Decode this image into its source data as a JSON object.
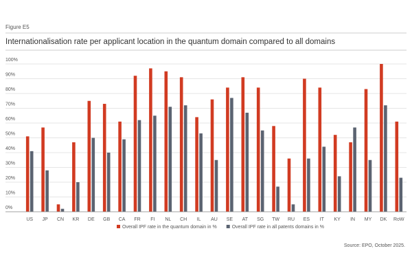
{
  "chart_data": {
    "type": "bar",
    "figure_label": "Figure E5",
    "title": "Internationalisation rate per applicant location in the quantum domain compared to all domains",
    "source": "Source: EPO, October 2025.",
    "categories": [
      "US",
      "JP",
      "CN",
      "KR",
      "DE",
      "GB",
      "CA",
      "FR",
      "FI",
      "NL",
      "CH",
      "IL",
      "AU",
      "SE",
      "AT",
      "SG",
      "TW",
      "RU",
      "ES",
      "IT",
      "KY",
      "IN",
      "MY",
      "DK",
      "RoW"
    ],
    "series": [
      {
        "name": "Overall IPF rate in the quantum domain in %",
        "color": "#d13b22",
        "values": [
          51,
          57,
          5,
          47,
          75,
          73,
          61,
          92,
          97,
          95,
          91,
          64,
          76,
          84,
          91,
          84,
          58,
          36,
          90,
          84,
          52,
          47,
          83,
          100,
          61
        ]
      },
      {
        "name": "Overall IPF rate in all patents domains in %",
        "color": "#5b6371",
        "values": [
          41,
          28,
          2,
          20,
          50,
          40,
          49,
          62,
          65,
          71,
          72,
          53,
          35,
          77,
          67,
          55,
          17,
          5,
          36,
          44,
          24,
          57,
          35,
          72,
          23
        ]
      }
    ],
    "ylim": [
      0,
      100
    ],
    "yticks": [
      {
        "value": 0,
        "label": "0%"
      },
      {
        "value": 10,
        "label": "10%"
      },
      {
        "value": 20,
        "label": "20%"
      },
      {
        "value": 30,
        "label": "30%"
      },
      {
        "value": 40,
        "label": "40%"
      },
      {
        "value": 50,
        "label": "50%"
      },
      {
        "value": 60,
        "label": "60%"
      },
      {
        "value": 70,
        "label": "70%"
      },
      {
        "value": 80,
        "label": "80%"
      },
      {
        "value": 90,
        "label": "90%"
      },
      {
        "value": 100,
        "label": "100%"
      }
    ],
    "grid": true
  }
}
